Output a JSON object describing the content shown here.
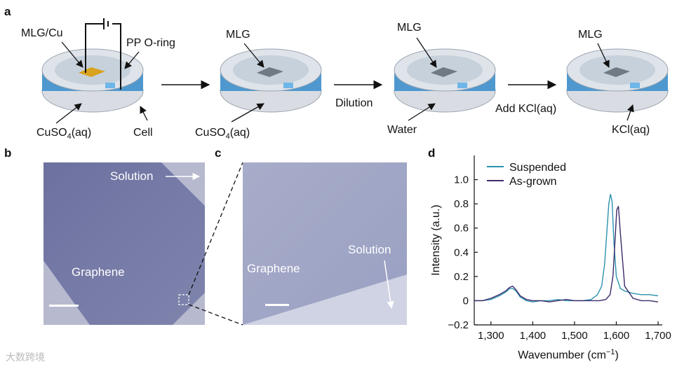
{
  "panels": {
    "a": "a",
    "b": "b",
    "c": "c",
    "d": "d"
  },
  "schematic": {
    "cell1": {
      "top_label": "MLG/Cu",
      "oring_label": "PP O-ring",
      "bottom_label_main": "CuSO",
      "bottom_label_sub": "4",
      "bottom_label_tail": "(aq)",
      "cell_label": "Cell"
    },
    "cell2": {
      "top_label": "MLG",
      "bottom_label_main": "CuSO",
      "bottom_label_sub": "4",
      "bottom_label_tail": "(aq)"
    },
    "cell3": {
      "top_label": "MLG",
      "bottom_label": "Water"
    },
    "cell4": {
      "top_label": "MLG",
      "bottom_label": "KCl(aq)"
    },
    "step_dilution": "Dilution",
    "step_add_kcl": "Add KCl(aq)"
  },
  "micrographs": {
    "b": {
      "solution": "Solution",
      "graphene": "Graphene"
    },
    "c": {
      "solution": "Solution",
      "graphene": "Graphene"
    }
  },
  "chart_data": {
    "type": "line",
    "title": "",
    "xlabel_main": "Wavenumber (cm",
    "xlabel_sup": "−1",
    "xlabel_tail": ")",
    "ylabel": "Intensity (a.u.)",
    "xlim": [
      1260,
      1710
    ],
    "ylim": [
      -0.2,
      1.2
    ],
    "xticks": [
      1300,
      1400,
      1500,
      1600,
      1700
    ],
    "xtick_labels": [
      "1,300",
      "1,400",
      "1,500",
      "1,600",
      "1,700"
    ],
    "yticks": [
      -0.2,
      0,
      0.2,
      0.4,
      0.6,
      0.8,
      1.0
    ],
    "ytick_labels": [
      "−0.2",
      "0",
      "0.2",
      "0.4",
      "0.6",
      "0.8",
      "1.0"
    ],
    "legend_position": "top-left",
    "series": [
      {
        "name": "Suspended",
        "color": "#2b93ad",
        "x": [
          1260,
          1280,
          1300,
          1320,
          1335,
          1345,
          1352,
          1360,
          1370,
          1385,
          1400,
          1420,
          1440,
          1460,
          1480,
          1500,
          1520,
          1540,
          1555,
          1565,
          1572,
          1578,
          1582,
          1586,
          1590,
          1594,
          1600,
          1610,
          1620,
          1640,
          1660,
          1680,
          1700
        ],
        "y": [
          0.0,
          0.0,
          0.01,
          0.04,
          0.07,
          0.1,
          0.1,
          0.08,
          0.03,
          0.0,
          -0.01,
          0.0,
          0.0,
          0.01,
          0.0,
          0.0,
          0.0,
          0.01,
          0.05,
          0.12,
          0.3,
          0.6,
          0.8,
          0.88,
          0.82,
          0.5,
          0.2,
          0.1,
          0.08,
          0.06,
          0.05,
          0.05,
          0.04
        ]
      },
      {
        "name": "As-grown",
        "color": "#3d2a6b",
        "x": [
          1260,
          1280,
          1300,
          1320,
          1335,
          1345,
          1352,
          1360,
          1370,
          1385,
          1400,
          1420,
          1440,
          1460,
          1480,
          1500,
          1520,
          1540,
          1560,
          1575,
          1585,
          1592,
          1597,
          1601,
          1605,
          1610,
          1620,
          1640,
          1660,
          1680,
          1700
        ],
        "y": [
          0.0,
          0.0,
          0.02,
          0.05,
          0.08,
          0.11,
          0.12,
          0.09,
          0.04,
          0.01,
          0.0,
          0.0,
          -0.01,
          0.0,
          0.01,
          0.0,
          0.0,
          0.0,
          0.0,
          0.01,
          0.05,
          0.2,
          0.5,
          0.75,
          0.78,
          0.55,
          0.12,
          0.02,
          0.0,
          0.0,
          -0.01
        ]
      }
    ]
  },
  "watermark": "大数跨境"
}
